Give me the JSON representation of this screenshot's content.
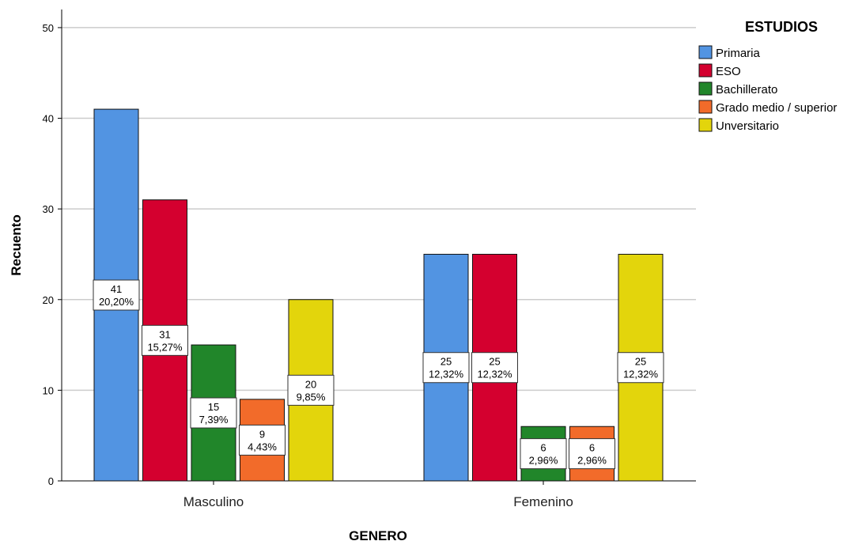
{
  "chart_data": {
    "type": "bar",
    "title": "",
    "xlabel": "GENERO",
    "ylabel": "Recuento",
    "ylim": [
      0,
      52
    ],
    "yticks": [
      0,
      10,
      20,
      30,
      40,
      50
    ],
    "grid": true,
    "legend_title": "ESTUDIOS",
    "legend_position": "top-right",
    "categories": [
      "Masculino",
      "Femenino"
    ],
    "series": [
      {
        "name": "Primaria",
        "color": "#5294e2",
        "values": [
          41,
          25
        ],
        "labels": [
          "20,20%",
          "12,32%"
        ]
      },
      {
        "name": "ESO",
        "color": "#d4002f",
        "values": [
          31,
          25
        ],
        "labels": [
          "15,27%",
          "12,32%"
        ]
      },
      {
        "name": "Bachillerato",
        "color": "#21862a",
        "values": [
          15,
          6
        ],
        "labels": [
          "7,39%",
          "2,96%"
        ]
      },
      {
        "name": "Grado medio / superior",
        "color": "#f26b2a",
        "values": [
          9,
          6
        ],
        "labels": [
          "4,43%",
          "2,96%"
        ]
      },
      {
        "name": "Unversitario",
        "color": "#e3d50c",
        "values": [
          20,
          25
        ],
        "labels": [
          "9,85%",
          "12,32%"
        ]
      }
    ]
  }
}
